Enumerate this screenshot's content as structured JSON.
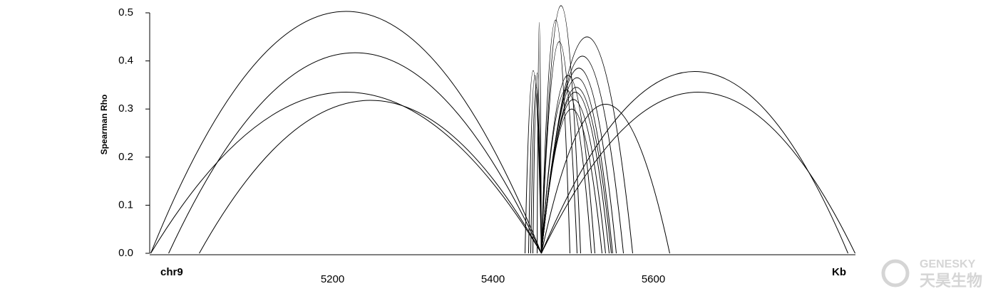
{
  "chart_data": {
    "type": "arc",
    "y_label": "Spearman Rho",
    "chromosome_label": "chr9",
    "x_unit_label": "Kb",
    "watermark": {
      "brand": "GENESKY",
      "name": "天昊生物"
    },
    "color": "#000000",
    "arcs": [
      {
        "start": 4973.3,
        "end": 5460.4,
        "rho": 0.503
      },
      {
        "start": 4995.6,
        "end": 5460.4,
        "rho": 0.417
      },
      {
        "start": 4973.3,
        "end": 5460.4,
        "rho": 0.335
      },
      {
        "start": 5033.8,
        "end": 5460.4,
        "rho": 0.318
      },
      {
        "start": 5460.4,
        "end": 5842.7,
        "rho": 0.378
      },
      {
        "start": 5460.4,
        "end": 5851.6,
        "rho": 0.335
      },
      {
        "start": 5440.0,
        "end": 5460.4,
        "rho": 0.38
      },
      {
        "start": 5444.4,
        "end": 5460.4,
        "rho": 0.37
      },
      {
        "start": 5447.1,
        "end": 5460.4,
        "rho": 0.345
      },
      {
        "start": 5449.8,
        "end": 5460.4,
        "rho": 0.375
      },
      {
        "start": 5455.1,
        "end": 5460.4,
        "rho": 0.48
      },
      {
        "start": 5460.4,
        "end": 5496.0,
        "rho": 0.485
      },
      {
        "start": 5460.4,
        "end": 5504.9,
        "rho": 0.44
      },
      {
        "start": 5460.4,
        "end": 5509.3,
        "rho": 0.515
      },
      {
        "start": 5460.4,
        "end": 5522.7,
        "rho": 0.34
      },
      {
        "start": 5460.4,
        "end": 5527.1,
        "rho": 0.37
      },
      {
        "start": 5460.4,
        "end": 5536.0,
        "rho": 0.3
      },
      {
        "start": 5460.4,
        "end": 5540.4,
        "rho": 0.32
      },
      {
        "start": 5460.4,
        "end": 5544.9,
        "rho": 0.335
      },
      {
        "start": 5460.4,
        "end": 5547.6,
        "rho": 0.345
      },
      {
        "start": 5460.4,
        "end": 5549.3,
        "rho": 0.365
      },
      {
        "start": 5460.4,
        "end": 5553.8,
        "rho": 0.385
      },
      {
        "start": 5460.4,
        "end": 5562.7,
        "rho": 0.41
      },
      {
        "start": 5460.4,
        "end": 5574.2,
        "rho": 0.45
      },
      {
        "start": 5460.4,
        "end": 5620.4,
        "rho": 0.31
      }
    ],
    "xlim": [
      4972,
      5852
    ],
    "xticks": [
      5200,
      5400,
      5600
    ],
    "ylim": [
      0,
      0.52
    ],
    "yticks": [
      {
        "value": 0,
        "label": "0.0"
      },
      0.1,
      0.2,
      0.3,
      0.4,
      0.5
    ],
    "grid": false
  }
}
